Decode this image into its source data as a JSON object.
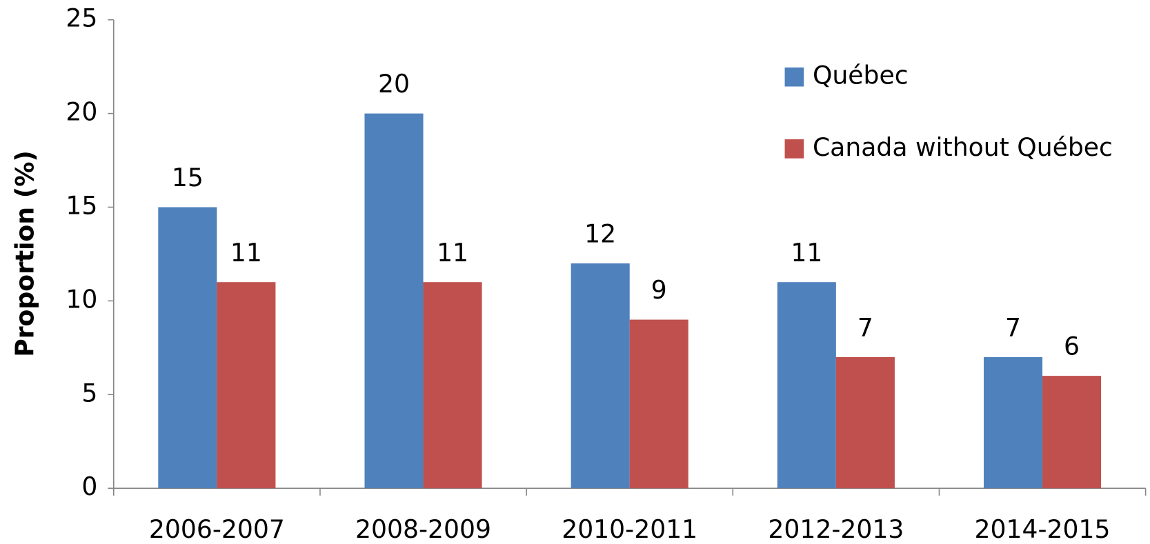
{
  "chart_data": {
    "type": "bar",
    "y_label": "Proportion (%)",
    "categories": [
      "2006-2007",
      "2008-2009",
      "2010-2011",
      "2012-2013",
      "2014-2015"
    ],
    "series": [
      {
        "name": "Québec",
        "color": "#4f81bd",
        "values": [
          15,
          20,
          12,
          11,
          7
        ]
      },
      {
        "name": "Canada without Québec",
        "color": "#c0504d",
        "values": [
          11,
          11,
          9,
          7,
          6
        ]
      }
    ],
    "ylim": [
      0,
      25
    ],
    "yticks": [
      0,
      5,
      10,
      15,
      20,
      25
    ],
    "grid": false,
    "legend": "top-right",
    "data_labels": true
  }
}
